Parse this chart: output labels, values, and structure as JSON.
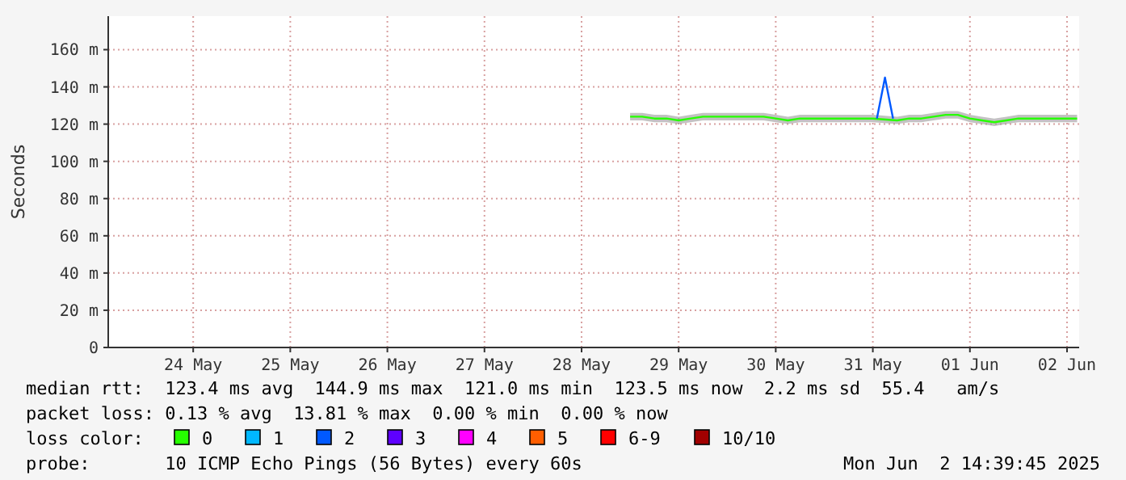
{
  "chart_data": {
    "type": "line",
    "ylabel": "Seconds",
    "legend_title": "loss color:",
    "legend": "bottom",
    "grid": true,
    "marker": "none",
    "line_style": "solid",
    "xlim": [
      "2025-05-23T15:00",
      "2025-06-02T15:00"
    ],
    "xticks": [
      {
        "value": "2025-05-24T12:00",
        "label": "24 May"
      },
      {
        "value": "2025-05-25T12:00",
        "label": "25 May"
      },
      {
        "value": "2025-05-26T12:00",
        "label": "26 May"
      },
      {
        "value": "2025-05-27T12:00",
        "label": "27 May"
      },
      {
        "value": "2025-05-28T12:00",
        "label": "28 May"
      },
      {
        "value": "2025-05-29T12:00",
        "label": "29 May"
      },
      {
        "value": "2025-05-30T12:00",
        "label": "30 May"
      },
      {
        "value": "2025-05-31T12:00",
        "label": "31 May"
      },
      {
        "value": "2025-06-01T12:00",
        "label": "01 Jun"
      },
      {
        "value": "2025-06-02T12:00",
        "label": "02 Jun"
      }
    ],
    "ylim": [
      0,
      178
    ],
    "yticks": [
      0,
      {
        "value": 20,
        "label": "20 m"
      },
      {
        "value": 40,
        "label": "40 m"
      },
      {
        "value": 60,
        "label": "60 m"
      },
      {
        "value": 80,
        "label": "80 m"
      },
      {
        "value": 100,
        "label": "100 m"
      },
      {
        "value": 120,
        "label": "120 m"
      },
      {
        "value": 140,
        "label": "140 m"
      },
      {
        "value": 160,
        "label": "160 m"
      }
    ],
    "series": [
      {
        "name": "0",
        "color": "#26ff00",
        "x": [
          "2025-05-29T00:00",
          "2025-05-29T03:00",
          "2025-05-29T06:00",
          "2025-05-29T09:00",
          "2025-05-29T12:00",
          "2025-05-29T15:00",
          "2025-05-29T18:00",
          "2025-05-29T21:00",
          "2025-05-30T00:00",
          "2025-05-30T03:00",
          "2025-05-30T06:00",
          "2025-05-30T09:00",
          "2025-05-30T12:00",
          "2025-05-30T15:00",
          "2025-05-30T18:00",
          "2025-05-30T21:00",
          "2025-05-31T00:00",
          "2025-05-31T03:00",
          "2025-05-31T06:00",
          "2025-05-31T09:00",
          "2025-05-31T12:00",
          "2025-05-31T18:00",
          "2025-05-31T21:00",
          "2025-06-01T00:00",
          "2025-06-01T03:00",
          "2025-06-01T06:00",
          "2025-06-01T09:00",
          "2025-06-01T12:00",
          "2025-06-01T15:00",
          "2025-06-01T18:00",
          "2025-06-01T21:00",
          "2025-06-02T00:00",
          "2025-06-02T03:00",
          "2025-06-02T06:00",
          "2025-06-02T09:00",
          "2025-06-02T12:00",
          "2025-06-02T14:30"
        ],
        "values": [
          124,
          124,
          123,
          123,
          122,
          123,
          124,
          124,
          124,
          124,
          124,
          124,
          123,
          122,
          123,
          123,
          123,
          123,
          123,
          123,
          123,
          122,
          123,
          123,
          124,
          125,
          125,
          123,
          122,
          121,
          122,
          123,
          123,
          123,
          123,
          123,
          123
        ],
        "lower": [
          122,
          122,
          121,
          121,
          120,
          121,
          122,
          122,
          122,
          122,
          122,
          122,
          121,
          120,
          121,
          121,
          121,
          121,
          121,
          121,
          121,
          120,
          121,
          121,
          122,
          123,
          123,
          121,
          120,
          119,
          120,
          121,
          121,
          121,
          121,
          121,
          121
        ],
        "upper": [
          126,
          126,
          125,
          125,
          124,
          125,
          126,
          126,
          126,
          126,
          126,
          126,
          125,
          124,
          125,
          125,
          125,
          125,
          125,
          125,
          125,
          124,
          125,
          125,
          126,
          127,
          127,
          125,
          124,
          123,
          124,
          125,
          125,
          125,
          125,
          125,
          125
        ]
      },
      {
        "name": "1",
        "color": "#00b8ff"
      },
      {
        "name": "2",
        "color": "#0059ff",
        "x": [
          "2025-05-31T13:00",
          "2025-05-31T15:00",
          "2025-05-31T17:00"
        ],
        "values": [
          123,
          145,
          123
        ]
      },
      {
        "name": "3",
        "color": "#5e00ff"
      },
      {
        "name": "4",
        "color": "#ff00ff"
      },
      {
        "name": "5",
        "color": "#ff5e00"
      },
      {
        "name": "6-9",
        "color": "#ff0000"
      },
      {
        "name": "10/10",
        "color": "#a10000"
      }
    ],
    "annotations": [
      "median rtt:  123.4 ms avg  144.9 ms max  121.0 ms min  123.5 ms now  2.2 ms sd  55.4   am/s",
      "packet loss: 0.13 % avg  13.81 % max  0.00 % min  0.00 % now",
      "probe:       10 ICMP Echo Pings (56 Bytes) every 60s",
      "Mon Jun  2 14:39:45 2025"
    ]
  }
}
